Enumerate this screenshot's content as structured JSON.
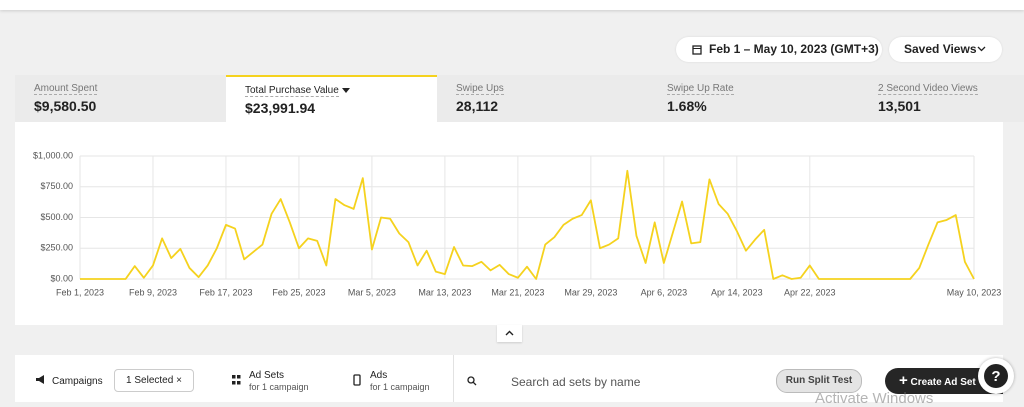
{
  "date_range": "Feb 1 – May 10, 2023 (GMT+3)",
  "saved_views": "Saved Views",
  "metrics": [
    {
      "label": "Amount Spent",
      "value": "$9,580.50"
    },
    {
      "label": "Total Purchase Value",
      "value": "$23,991.94"
    },
    {
      "label": "Swipe Ups",
      "value": "28,112"
    },
    {
      "label": "Swipe Up Rate",
      "value": "1.68%"
    },
    {
      "label": "2 Second Video Views",
      "value": "13,501"
    }
  ],
  "chart_data": {
    "type": "line",
    "color": "#f5d21e",
    "grid": true,
    "categories": [
      "Feb 1, 2023",
      null,
      null,
      null,
      null,
      null,
      null,
      null,
      "Feb 9, 2023",
      null,
      null,
      null,
      null,
      null,
      null,
      null,
      "Feb 17, 2023",
      null,
      null,
      null,
      null,
      null,
      null,
      null,
      "Feb 25, 2023",
      null,
      null,
      null,
      null,
      null,
      null,
      null,
      "Mar 5, 2023",
      null,
      null,
      null,
      null,
      null,
      null,
      null,
      "Mar 13, 2023",
      null,
      null,
      null,
      null,
      null,
      null,
      null,
      "Mar 21, 2023",
      null,
      null,
      null,
      null,
      null,
      null,
      null,
      "Mar 29, 2023",
      null,
      null,
      null,
      null,
      null,
      null,
      null,
      "Apr 6, 2023",
      null,
      null,
      null,
      null,
      null,
      null,
      null,
      "Apr 14, 2023",
      null,
      null,
      null,
      null,
      null,
      null,
      null,
      "Apr 22, 2023",
      null,
      null,
      null,
      null,
      null,
      null,
      null,
      null,
      null,
      null,
      null,
      null,
      null,
      null,
      null,
      null,
      null,
      "May 10, 2023"
    ],
    "values": [
      0,
      0,
      0,
      0,
      0,
      0,
      105,
      10,
      110,
      330,
      170,
      245,
      90,
      15,
      110,
      250,
      440,
      410,
      160,
      220,
      280,
      530,
      650,
      460,
      250,
      330,
      310,
      110,
      650,
      600,
      570,
      820,
      240,
      500,
      490,
      370,
      300,
      110,
      230,
      60,
      40,
      260,
      110,
      105,
      140,
      70,
      115,
      40,
      10,
      100,
      0,
      280,
      340,
      440,
      490,
      520,
      640,
      250,
      280,
      330,
      880,
      350,
      130,
      460,
      130,
      380,
      630,
      290,
      300,
      810,
      610,
      530,
      390,
      230,
      320,
      400,
      0,
      30,
      0,
      10,
      110,
      0,
      0,
      0,
      0,
      0,
      0,
      0,
      0,
      0,
      0,
      0,
      90,
      280,
      460,
      480,
      520,
      140,
      0
    ],
    "ylim": [
      0,
      1000
    ],
    "yticks": [
      {
        "value": 0,
        "label": "$0.00"
      },
      {
        "value": 250,
        "label": "$250.00"
      },
      {
        "value": 500,
        "label": "$500.00"
      },
      {
        "value": 750,
        "label": "$750.00"
      },
      {
        "value": 1000,
        "label": "$1,000.00"
      }
    ]
  },
  "toolbar": {
    "campaigns": "Campaigns",
    "selected": "1 Selected",
    "ad_sets": "Ad Sets",
    "ad_sets_sub": "for 1 campaign",
    "ads": "Ads",
    "ads_sub": "for 1 campaign",
    "search": "Search ad sets by name",
    "split_test": "Run Split Test",
    "create": "Create Ad Set"
  },
  "watermark": "Activate Windows"
}
